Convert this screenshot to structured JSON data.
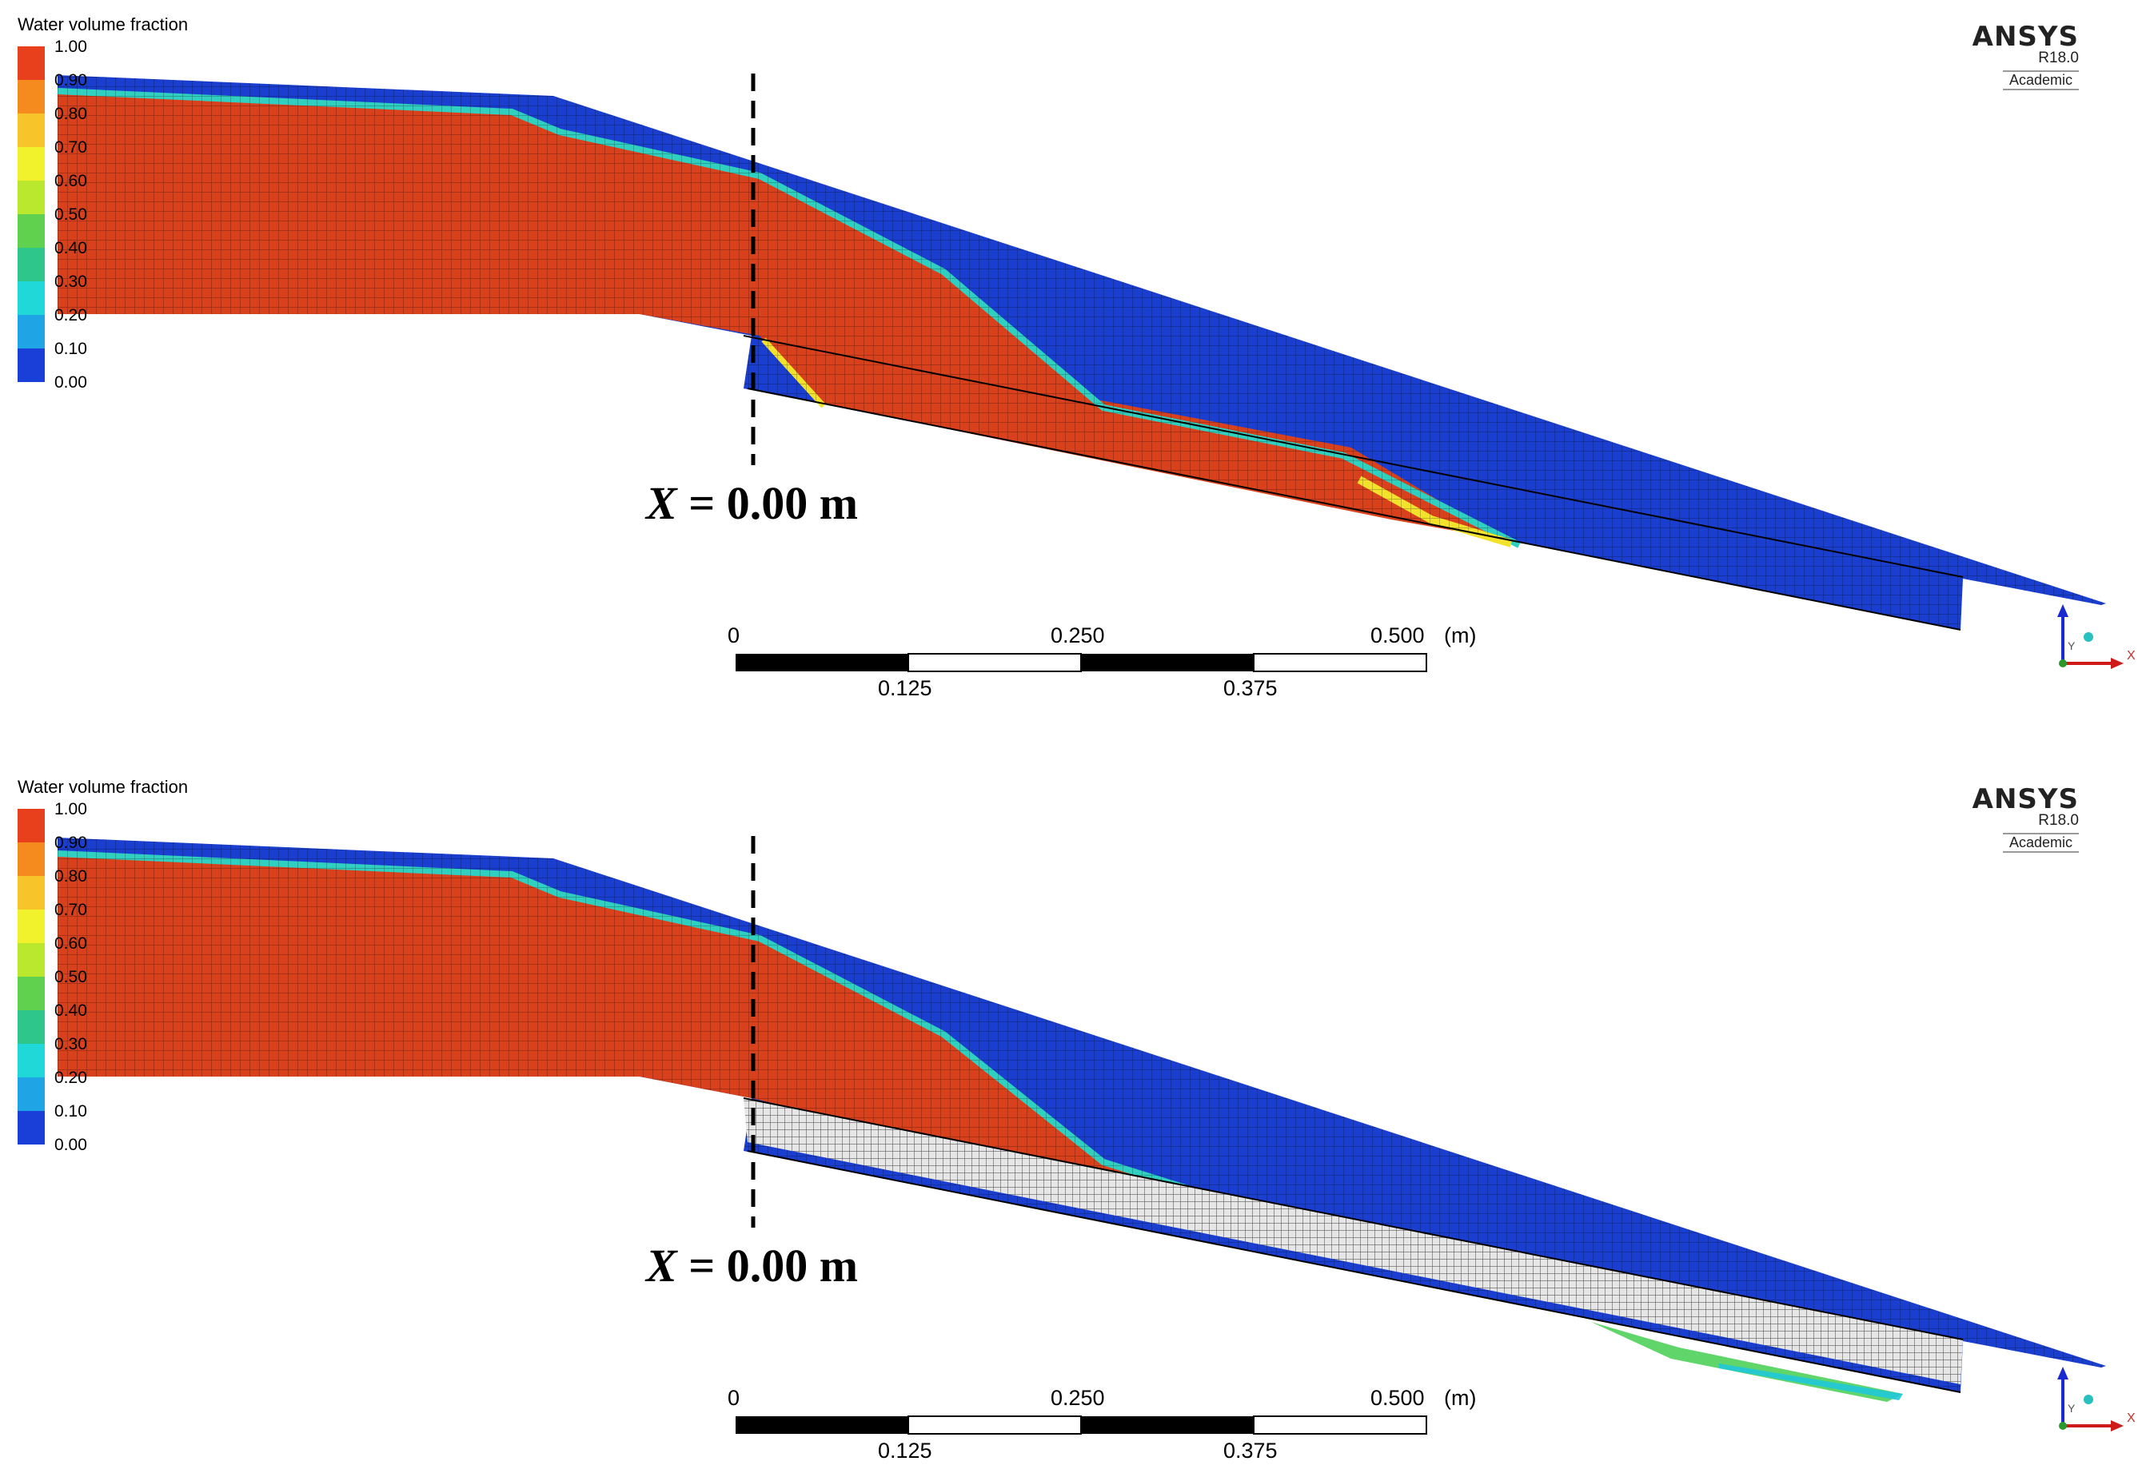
{
  "panels": [
    {
      "id": "top",
      "legend": {
        "title": "Water volume fraction",
        "levels": [
          "1.00",
          "0.90",
          "0.80",
          "0.70",
          "0.60",
          "0.50",
          "0.40",
          "0.30",
          "0.20",
          "0.10",
          "0.00"
        ],
        "colors": [
          "#e8401c",
          "#f58a1e",
          "#f7c52a",
          "#f2f22c",
          "#b9e82e",
          "#5fd14e",
          "#2fc68c",
          "#20d8d8",
          "#1fa4e6",
          "#1f6ee6",
          "#1a3fd8"
        ]
      },
      "branding": {
        "brand": "ANSYS",
        "version": "R18.0",
        "edition": "Academic"
      },
      "annotation": {
        "var": "X",
        "text": " = 0.00 m"
      },
      "scale": {
        "labels_top": [
          "0",
          "0.250",
          "0.500",
          "(m)"
        ],
        "labels_bottom": [
          "0.125",
          "0.375"
        ]
      },
      "axes": {
        "y": "Y",
        "x": "X"
      }
    },
    {
      "id": "bottom",
      "legend": {
        "title": "Water volume fraction",
        "levels": [
          "1.00",
          "0.90",
          "0.80",
          "0.70",
          "0.60",
          "0.50",
          "0.40",
          "0.30",
          "0.20",
          "0.10",
          "0.00"
        ],
        "colors": [
          "#e8401c",
          "#f58a1e",
          "#f7c52a",
          "#f2f22c",
          "#b9e82e",
          "#5fd14e",
          "#2fc68c",
          "#20d8d8",
          "#1fa4e6",
          "#1f6ee6",
          "#1a3fd8"
        ]
      },
      "branding": {
        "brand": "ANSYS",
        "version": "R18.0",
        "edition": "Academic"
      },
      "annotation": {
        "var": "X",
        "text": " = 0.00 m"
      },
      "scale": {
        "labels_top": [
          "0",
          "0.250",
          "0.500",
          "(m)"
        ],
        "labels_bottom": [
          "0.125",
          "0.375"
        ]
      },
      "axes": {
        "y": "Y",
        "x": "X"
      }
    }
  ],
  "colors": {
    "water": "#d9401c",
    "air": "#1a3fd0",
    "interface": "#2fd0c0",
    "porous": "#e6e6e6"
  }
}
